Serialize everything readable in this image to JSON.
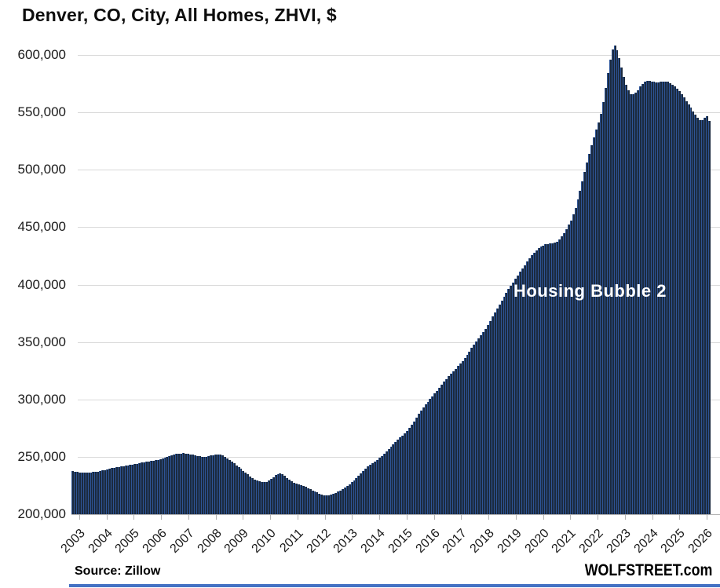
{
  "title": "Denver, CO, City, All Homes, ZHVI, $",
  "annotation": "Housing Bubble 2",
  "source": "Source: Zillow",
  "brand": "WOLFSTREET.com",
  "colors": {
    "bar_fill": "#1b2a3e",
    "bar_edge": "#2e5496",
    "gridline": "#d9d9d9",
    "axis_line": "#b3b3b3",
    "tick": "#b3b3b3",
    "annotation_text": "#ffffff",
    "title_text": "#0d0d0d",
    "axis_text": "#1a1a1a",
    "bottom_stripe": "#4472c4"
  },
  "chart_data": {
    "type": "bar",
    "title": "Denver, CO, City, All Homes, ZHVI, $",
    "xlabel": "",
    "ylabel": "",
    "frequency": "monthly",
    "x_start": "2003-01",
    "x_end": "2026-01",
    "ymin": 200000,
    "ygrid_max": 600000,
    "ystep": 50000,
    "ylim": [
      200000,
      620000
    ],
    "grid": "horizontal",
    "legend": "none",
    "ytick_labels": [
      "200,000",
      "250,000",
      "300,000",
      "350,000",
      "400,000",
      "450,000",
      "500,000",
      "550,000",
      "600,000"
    ],
    "xtick_labels": [
      "2003",
      "2004",
      "2005",
      "2006",
      "2007",
      "2008",
      "2009",
      "2010",
      "2011",
      "2012",
      "2013",
      "2014",
      "2015",
      "2016",
      "2017",
      "2018",
      "2019",
      "2020",
      "2021",
      "2022",
      "2023",
      "2024",
      "2025",
      "2026"
    ],
    "values": [
      237500,
      237000,
      236600,
      236300,
      236100,
      236000,
      236100,
      236200,
      236400,
      236600,
      236900,
      237200,
      237600,
      238100,
      238600,
      239100,
      239600,
      240100,
      240500,
      240900,
      241300,
      241600,
      241900,
      242200,
      242500,
      242900,
      243300,
      243700,
      244100,
      244500,
      244900,
      245300,
      245700,
      246000,
      246300,
      246600,
      247000,
      247500,
      248100,
      248800,
      249500,
      250200,
      250900,
      251500,
      252000,
      252400,
      252700,
      252900,
      253000,
      252900,
      252600,
      252200,
      251700,
      251200,
      250700,
      250300,
      250000,
      249900,
      250100,
      250500,
      251000,
      251500,
      251900,
      252000,
      251700,
      251000,
      250000,
      248800,
      247400,
      245900,
      244300,
      242700,
      241100,
      239500,
      237900,
      236300,
      234700,
      233100,
      231600,
      230300,
      229200,
      228400,
      228000,
      227900,
      228300,
      229200,
      230600,
      232300,
      233900,
      235100,
      235500,
      234800,
      233300,
      231500,
      229800,
      228500,
      227600,
      226900,
      226200,
      225500,
      224700,
      223800,
      222800,
      221800,
      220800,
      219800,
      218900,
      218100,
      217300,
      216700,
      216400,
      216500,
      216900,
      217600,
      218500,
      219600,
      220800,
      222100,
      223400,
      224700,
      226100,
      227700,
      229500,
      231500,
      233600,
      235700,
      237800,
      239700,
      241500,
      243100,
      244600,
      246000,
      247400,
      248900,
      250600,
      252500,
      254600,
      256800,
      259000,
      261100,
      263100,
      265000,
      266800,
      268600,
      270500,
      272700,
      275200,
      278000,
      281000,
      284100,
      287200,
      290200,
      293000,
      295600,
      298000,
      300300,
      302600,
      305000,
      307500,
      310100,
      312700,
      315300,
      317800,
      320200,
      322500,
      324700,
      326800,
      328900,
      331100,
      333500,
      336100,
      338900,
      341800,
      344800,
      347800,
      350700,
      353500,
      356200,
      358800,
      361300,
      365000,
      368500,
      372000,
      375500,
      379000,
      382500,
      386000,
      389500,
      393000,
      396000,
      399000,
      402000,
      405000,
      408000,
      411000,
      414000,
      417000,
      420000,
      423000,
      425500,
      428000,
      430000,
      431500,
      433000,
      434000,
      435000,
      435500,
      436000,
      436000,
      436500,
      437500,
      439500,
      442000,
      445000,
      448500,
      452000,
      456000,
      461000,
      467000,
      474000,
      482000,
      490000,
      498000,
      506000,
      514000,
      521500,
      528500,
      535000,
      541000,
      549000,
      559000,
      571000,
      584000,
      596000,
      605000,
      608000,
      604000,
      597000,
      589000,
      581000,
      574000,
      569000,
      566000,
      565500,
      567000,
      569500,
      572500,
      575000,
      576500,
      577500,
      577500,
      577000,
      576500,
      576000,
      576000,
      576500,
      577000,
      577000,
      576500,
      575500,
      574000,
      572500,
      570500,
      568500,
      566000,
      563000,
      560000,
      557000,
      554000,
      551000,
      548000,
      545500,
      543500,
      543000,
      545000,
      546500,
      542500
    ]
  }
}
